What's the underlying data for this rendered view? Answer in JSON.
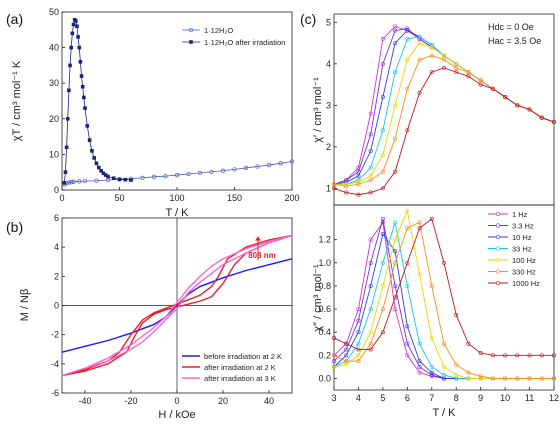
{
  "chart_data": [
    {
      "panel": "(a)",
      "type": "scatter",
      "xlabel": "T / K",
      "ylabel": "χT / cm³ mol⁻¹ K",
      "xlim": [
        0,
        200
      ],
      "ylim": [
        0,
        50
      ],
      "xticks": [
        "0",
        "50",
        "100",
        "150",
        "200"
      ],
      "yticks": [
        "0",
        "10",
        "20",
        "30",
        "40",
        "50"
      ],
      "legend_position": "top-right",
      "series": [
        {
          "name": "1·12H₂O",
          "color": "#4b5bbf",
          "marker": "open-circle",
          "x": [
            2,
            4,
            6,
            8,
            10,
            15,
            20,
            30,
            40,
            50,
            60,
            70,
            80,
            90,
            100,
            110,
            120,
            130,
            140,
            150,
            160,
            170,
            180,
            190,
            200
          ],
          "y": [
            1.6,
            1.9,
            2.1,
            2.2,
            2.3,
            2.4,
            2.5,
            2.6,
            2.8,
            3.0,
            3.2,
            3.4,
            3.7,
            3.9,
            4.2,
            4.5,
            4.8,
            5.1,
            5.4,
            5.8,
            6.2,
            6.6,
            7.0,
            7.5,
            8.0
          ]
        },
        {
          "name": "1·12H₂O  after irradiation",
          "color": "#1a237e",
          "marker": "filled-square",
          "x": [
            2,
            3,
            4,
            5,
            6,
            7,
            8,
            9,
            10,
            11,
            12,
            13,
            14,
            15,
            16,
            17,
            18,
            19,
            20,
            22,
            24,
            26,
            28,
            30,
            32,
            34,
            36,
            38,
            40,
            45,
            50,
            55,
            60
          ],
          "y": [
            2,
            5,
            12,
            20,
            28,
            35,
            40,
            44,
            46.5,
            47.8,
            47.5,
            46,
            43,
            40,
            36,
            32,
            29,
            26,
            23,
            18,
            14,
            11,
            9,
            7.5,
            6.3,
            5.4,
            4.7,
            4.2,
            3.8,
            3.3,
            3.0,
            2.9,
            2.8
          ]
        }
      ]
    },
    {
      "panel": "(b)",
      "type": "line",
      "xlabel": "H / kOe",
      "ylabel": "M / Nβ",
      "xlim": [
        -50,
        50
      ],
      "ylim": [
        -6,
        6
      ],
      "xticks": [
        "-40",
        "-20",
        "0",
        "20",
        "40"
      ],
      "yticks": [
        "-6",
        "-4",
        "-2",
        "0",
        "2",
        "4",
        "6"
      ],
      "annotation": "808 nm",
      "legend_position": "bottom-right",
      "series": [
        {
          "name": "before irradiation at 2 K",
          "color": "#1a1aff",
          "x": [
            -50,
            -40,
            -30,
            -20,
            -10,
            -5,
            0,
            5,
            10,
            20,
            30,
            40,
            50
          ],
          "y": [
            -3.2,
            -2.8,
            -2.4,
            -1.9,
            -1.3,
            -0.8,
            0,
            0.8,
            1.3,
            1.9,
            2.4,
            2.8,
            3.2
          ]
        },
        {
          "name": "after irradiation at 2 K",
          "color": "#e8202a",
          "x": [
            -50,
            -40,
            -30,
            -22,
            -18,
            -15,
            -10,
            -5,
            0,
            5,
            10,
            15,
            20,
            25,
            30,
            40,
            50,
            40,
            30,
            22,
            18,
            15,
            10,
            5,
            0,
            -5,
            -10,
            -15,
            -20,
            -25,
            -30,
            -40,
            -50
          ],
          "y": [
            -4.8,
            -4.5,
            -4.0,
            -3.2,
            -2.0,
            -1.2,
            -0.6,
            -0.3,
            -0.1,
            0.1,
            0.3,
            0.6,
            1.5,
            2.8,
            3.6,
            4.3,
            4.8,
            4.5,
            4.0,
            3.2,
            2.0,
            1.3,
            0.7,
            0.4,
            0.1,
            -0.2,
            -0.5,
            -1.0,
            -2.0,
            -3.2,
            -3.8,
            -4.4,
            -4.8
          ]
        },
        {
          "name": "after irradiation at 3 K",
          "color": "#ff66cc",
          "x": [
            -50,
            -40,
            -30,
            -20,
            -15,
            -10,
            -5,
            0,
            5,
            10,
            15,
            20,
            30,
            40,
            50,
            40,
            30,
            20,
            15,
            10,
            5,
            0,
            -5,
            -10,
            -15,
            -20,
            -30,
            -40,
            -50
          ],
          "y": [
            -4.8,
            -4.3,
            -3.8,
            -3.0,
            -2.5,
            -1.8,
            -1.0,
            -0.2,
            0.9,
            1.6,
            2.2,
            2.8,
            3.6,
            4.3,
            4.8,
            4.4,
            3.9,
            3.2,
            2.7,
            2.0,
            1.2,
            0.2,
            -0.8,
            -1.5,
            -2.1,
            -2.7,
            -3.6,
            -4.3,
            -4.8
          ]
        }
      ]
    },
    {
      "panel": "(c)",
      "type": "line",
      "xlabel": "T / K",
      "ylabel_top": "χ′ / cm³ mol⁻¹",
      "ylabel_bottom": "χ″ / cm³ mol⁻¹",
      "xlim": [
        3,
        12
      ],
      "ylim_top": [
        0.6,
        5.2
      ],
      "ylim_bottom": [
        -0.1,
        1.5
      ],
      "xticks": [
        "3",
        "4",
        "5",
        "6",
        "7",
        "8",
        "9",
        "10",
        "11",
        "12"
      ],
      "yticks_top": [
        "1",
        "2",
        "3",
        "4",
        "5"
      ],
      "yticks_bottom": [
        "0.0",
        "0.2",
        "0.4",
        "0.6",
        "0.8",
        "1.0",
        "1.2"
      ],
      "conditions": [
        "Hdc = 0 Oe",
        "Hac = 3.5 Oe"
      ],
      "legend_position": "top-right",
      "x": [
        3.0,
        3.5,
        4.0,
        4.5,
        5.0,
        5.5,
        6.0,
        6.5,
        7.0,
        7.5,
        8.0,
        8.5,
        9.0,
        9.5,
        10.0,
        10.5,
        11.0,
        11.5,
        12.0
      ],
      "series": [
        {
          "name": "1 Hz",
          "color": "#cc33cc",
          "chi1": [
            1.1,
            1.2,
            1.5,
            2.8,
            4.6,
            4.9,
            4.8,
            4.6,
            4.4,
            4.2,
            4.0,
            3.8,
            3.6,
            3.4,
            3.2,
            3.0,
            2.9,
            2.7,
            2.6
          ],
          "chi2": [
            0.2,
            0.3,
            0.6,
            1.2,
            1.35,
            0.6,
            0.2,
            0.05,
            0.02,
            0.0,
            0.0,
            0.0,
            0.0,
            0.0,
            0.0,
            0.0,
            0.0,
            0.0,
            0.0
          ]
        },
        {
          "name": "3.3 Hz",
          "color": "#7a2be0",
          "chi1": [
            1.1,
            1.2,
            1.4,
            2.3,
            4.0,
            4.8,
            4.85,
            4.6,
            4.4,
            4.2,
            4.0,
            3.8,
            3.6,
            3.4,
            3.2,
            3.0,
            2.9,
            2.7,
            2.6
          ],
          "chi2": [
            0.15,
            0.25,
            0.5,
            1.0,
            1.38,
            0.8,
            0.3,
            0.1,
            0.03,
            0.0,
            0.0,
            0.0,
            0.0,
            0.0,
            0.0,
            0.0,
            0.0,
            0.0,
            0.0
          ]
        },
        {
          "name": "10 Hz",
          "color": "#2b3fe0",
          "chi1": [
            1.1,
            1.15,
            1.3,
            1.9,
            3.2,
            4.5,
            4.8,
            4.65,
            4.45,
            4.2,
            4.0,
            3.8,
            3.6,
            3.4,
            3.2,
            3.0,
            2.9,
            2.7,
            2.6
          ],
          "chi2": [
            0.1,
            0.2,
            0.4,
            0.8,
            1.25,
            1.1,
            0.45,
            0.15,
            0.05,
            0.0,
            0.0,
            0.0,
            0.0,
            0.0,
            0.0,
            0.0,
            0.0,
            0.0,
            0.0
          ]
        },
        {
          "name": "33 Hz",
          "color": "#19c6e6",
          "chi1": [
            1.1,
            1.1,
            1.2,
            1.5,
            2.4,
            3.8,
            4.6,
            4.65,
            4.45,
            4.2,
            4.0,
            3.8,
            3.6,
            3.4,
            3.2,
            3.0,
            2.9,
            2.7,
            2.6
          ],
          "chi2": [
            0.1,
            0.15,
            0.3,
            0.6,
            1.0,
            1.35,
            0.8,
            0.3,
            0.1,
            0.03,
            0.0,
            0.0,
            0.0,
            0.0,
            0.0,
            0.0,
            0.0,
            0.0,
            0.0
          ]
        },
        {
          "name": "100 Hz",
          "color": "#e6d800",
          "chi1": [
            1.1,
            1.1,
            1.15,
            1.3,
            1.8,
            3.0,
            4.1,
            4.5,
            4.4,
            4.2,
            4.0,
            3.8,
            3.6,
            3.4,
            3.2,
            3.0,
            2.9,
            2.7,
            2.6
          ],
          "chi2": [
            0.1,
            0.12,
            0.2,
            0.4,
            0.8,
            1.2,
            1.45,
            0.9,
            0.35,
            0.1,
            0.03,
            0.0,
            0.0,
            0.0,
            0.0,
            0.0,
            0.0,
            0.0,
            0.0
          ]
        },
        {
          "name": "330 Hz",
          "color": "#ff8a1a",
          "chi1": [
            1.1,
            1.05,
            1.1,
            1.2,
            1.4,
            2.2,
            3.4,
            4.1,
            4.2,
            4.1,
            3.9,
            3.8,
            3.6,
            3.4,
            3.2,
            3.0,
            2.9,
            2.7,
            2.6
          ],
          "chi2": [
            0.2,
            0.15,
            0.15,
            0.3,
            0.6,
            1.0,
            1.3,
            1.35,
            0.8,
            0.3,
            0.12,
            0.05,
            0.02,
            0.0,
            0.0,
            0.0,
            0.0,
            0.0,
            0.0
          ]
        },
        {
          "name": "1000 Hz",
          "color": "#c0161e",
          "chi1": [
            1.0,
            0.9,
            0.85,
            0.9,
            1.0,
            1.4,
            2.4,
            3.3,
            3.8,
            3.9,
            3.8,
            3.7,
            3.5,
            3.4,
            3.2,
            3.0,
            2.9,
            2.7,
            2.6
          ],
          "chi2": [
            0.35,
            0.3,
            0.25,
            0.25,
            0.4,
            0.7,
            1.0,
            1.3,
            1.38,
            1.0,
            0.55,
            0.3,
            0.22,
            0.2,
            0.2,
            0.2,
            0.2,
            0.2,
            0.2
          ]
        }
      ]
    }
  ]
}
